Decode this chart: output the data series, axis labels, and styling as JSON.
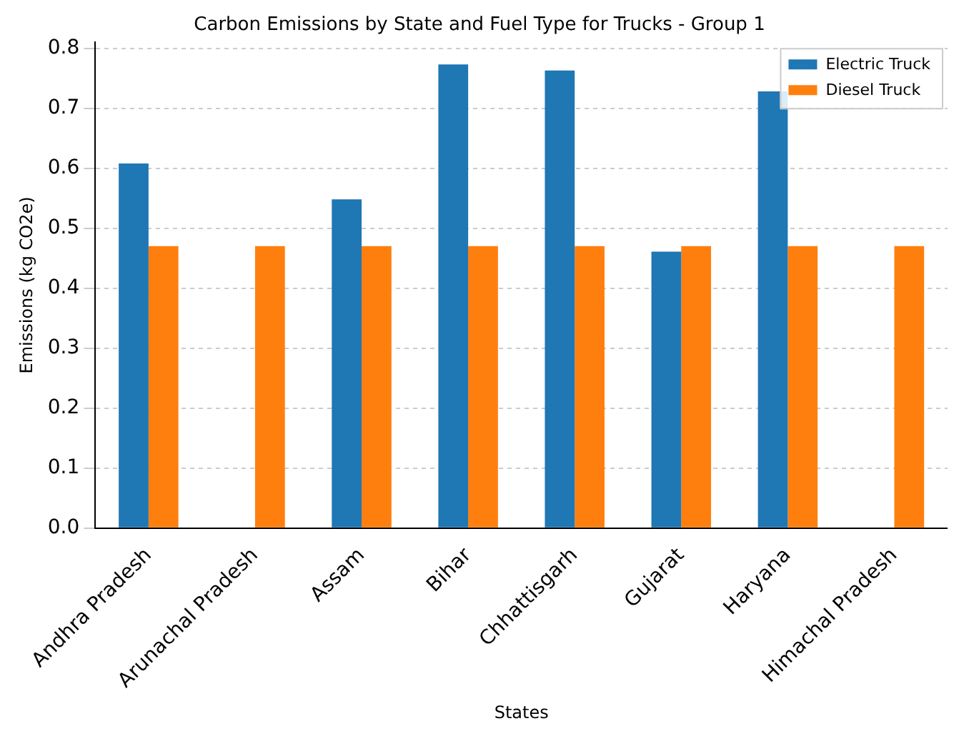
{
  "chart_data": {
    "type": "bar",
    "title": "Carbon Emissions by State and Fuel Type for Trucks - Group 1",
    "xlabel": "States",
    "ylabel": "Emissions (kg CO2e)",
    "categories": [
      "Andhra Pradesh",
      "Arunachal Pradesh",
      "Assam",
      "Bihar",
      "Chhattisgarh",
      "Gujarat",
      "Haryana",
      "Himachal Pradesh"
    ],
    "series": [
      {
        "name": "Electric Truck",
        "color": "#1f77b4",
        "values": [
          0.608,
          null,
          0.548,
          0.773,
          0.763,
          0.461,
          0.728,
          null
        ]
      },
      {
        "name": "Diesel Truck",
        "color": "#ff7f0e",
        "values": [
          0.47,
          0.47,
          0.47,
          0.47,
          0.47,
          0.47,
          0.47,
          0.47
        ]
      }
    ],
    "ylim": [
      0,
      0.81
    ],
    "yticks": [
      {
        "value": 0,
        "label": "0.0"
      },
      {
        "value": 0.1,
        "label": "0.1"
      },
      {
        "value": 0.2,
        "label": "0.2"
      },
      {
        "value": 0.3,
        "label": "0.3"
      },
      {
        "value": 0.4,
        "label": "0.4"
      },
      {
        "value": 0.5,
        "label": "0.5"
      },
      {
        "value": 0.6,
        "label": "0.6"
      },
      {
        "value": 0.7,
        "label": "0.7"
      },
      {
        "value": 0.8,
        "label": "0.8"
      }
    ],
    "grid": "y",
    "legend": "top right"
  }
}
